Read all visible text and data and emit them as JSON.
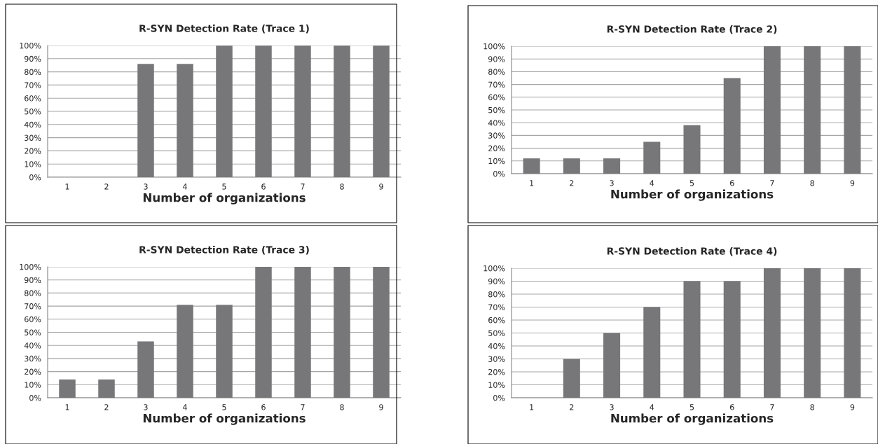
{
  "chart_data": [
    {
      "type": "bar",
      "title": "R-SYN Detection Rate (Trace 1)",
      "xlabel": "Number of organizations",
      "categories": [
        "1",
        "2",
        "3",
        "4",
        "5",
        "6",
        "7",
        "8",
        "9"
      ],
      "values": [
        0,
        0,
        86,
        86,
        100,
        100,
        100,
        100,
        100
      ],
      "color": "#77777a",
      "ylim": [
        0,
        100
      ],
      "yticks": [
        {
          "value": 0,
          "label": "0%"
        },
        {
          "value": 10,
          "label": "10%"
        },
        {
          "value": 20,
          "label": "20%"
        },
        {
          "value": 30,
          "label": "30%"
        },
        {
          "value": 40,
          "label": "40%"
        },
        {
          "value": 50,
          "label": "50%"
        },
        {
          "value": 60,
          "label": "60%"
        },
        {
          "value": 70,
          "label": "70%"
        },
        {
          "value": 80,
          "label": "80%"
        },
        {
          "value": 90,
          "label": "90%"
        },
        {
          "value": 100,
          "label": "100%"
        }
      ],
      "grid": "y"
    },
    {
      "type": "bar",
      "title": "R-SYN Detection Rate (Trace 2)",
      "xlabel": "Number of organizations",
      "categories": [
        "1",
        "2",
        "3",
        "4",
        "5",
        "6",
        "7",
        "8",
        "9"
      ],
      "values": [
        12,
        12,
        12,
        25,
        38,
        75,
        100,
        100,
        100
      ],
      "color": "#77777a",
      "ylim": [
        0,
        100
      ],
      "yticks": [
        {
          "value": 0,
          "label": "0%"
        },
        {
          "value": 10,
          "label": "10%"
        },
        {
          "value": 20,
          "label": "20%"
        },
        {
          "value": 30,
          "label": "30%"
        },
        {
          "value": 40,
          "label": "40%"
        },
        {
          "value": 50,
          "label": "50%"
        },
        {
          "value": 60,
          "label": "60%"
        },
        {
          "value": 70,
          "label": "70%"
        },
        {
          "value": 80,
          "label": "80%"
        },
        {
          "value": 90,
          "label": "90%"
        },
        {
          "value": 100,
          "label": "100%"
        }
      ],
      "grid": "y"
    },
    {
      "type": "bar",
      "title": "R-SYN Detection Rate (Trace 3)",
      "xlabel": "Number of organizations",
      "categories": [
        "1",
        "2",
        "3",
        "4",
        "5",
        "6",
        "7",
        "8",
        "9"
      ],
      "values": [
        14,
        14,
        43,
        71,
        71,
        100,
        100,
        100,
        100
      ],
      "color": "#77777a",
      "ylim": [
        0,
        100
      ],
      "yticks": [
        {
          "value": 0,
          "label": "0%"
        },
        {
          "value": 10,
          "label": "10%"
        },
        {
          "value": 20,
          "label": "20%"
        },
        {
          "value": 30,
          "label": "30%"
        },
        {
          "value": 40,
          "label": "40%"
        },
        {
          "value": 50,
          "label": "50%"
        },
        {
          "value": 60,
          "label": "60%"
        },
        {
          "value": 70,
          "label": "70%"
        },
        {
          "value": 80,
          "label": "80%"
        },
        {
          "value": 90,
          "label": "90%"
        },
        {
          "value": 100,
          "label": "100%"
        }
      ],
      "grid": "y"
    },
    {
      "type": "bar",
      "title": "R-SYN Detection Rate (Trace 4)",
      "xlabel": "Number of organizations",
      "categories": [
        "1",
        "2",
        "3",
        "4",
        "5",
        "6",
        "7",
        "8",
        "9"
      ],
      "values": [
        0,
        30,
        50,
        70,
        90,
        90,
        100,
        100,
        100
      ],
      "color": "#77777a",
      "ylim": [
        0,
        100
      ],
      "yticks": [
        {
          "value": 0,
          "label": "0%"
        },
        {
          "value": 10,
          "label": "10%"
        },
        {
          "value": 20,
          "label": "20%"
        },
        {
          "value": 30,
          "label": "30%"
        },
        {
          "value": 40,
          "label": "40%"
        },
        {
          "value": 50,
          "label": "50%"
        },
        {
          "value": 60,
          "label": "60%"
        },
        {
          "value": 70,
          "label": "70%"
        },
        {
          "value": 80,
          "label": "80%"
        },
        {
          "value": 90,
          "label": "90%"
        },
        {
          "value": 100,
          "label": "100%"
        }
      ],
      "grid": "y"
    }
  ]
}
